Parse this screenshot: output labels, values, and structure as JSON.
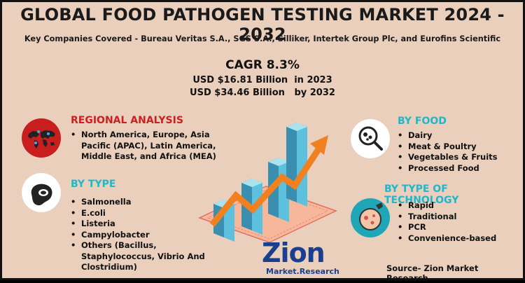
{
  "header": {
    "title": "GLOBAL FOOD PATHOGEN TESTING MARKET 2024 - 2032",
    "subtitle": "Key Companies Covered - Bureau Veritas S.A., SGS S.A., Silliker, Intertek Group Plc, and Eurofins Scientific"
  },
  "stats": {
    "cagr": "CAGR 8.3%",
    "line1": "USD $16.81 Billion  in 2023",
    "line2": "USD $34.46 Billion   by 2032"
  },
  "regional": {
    "title": "REGIONAL ANALYSIS",
    "items": [
      "North America, Europe, Asia Pacific (APAC), Latin America, Middle East, and Africa (MEA)"
    ]
  },
  "by_type": {
    "title": "BY TYPE",
    "items": [
      "Salmonella",
      "E.coli",
      "Listeria",
      "Campylobacter",
      "Others (Bacillus, Staphylococcus, Vibrio And Clostridium)"
    ]
  },
  "by_food": {
    "title": "BY FOOD",
    "items": [
      "Dairy",
      "Meat & Poultry",
      "Vegetables & Fruits",
      "Processed Food"
    ]
  },
  "by_tech": {
    "title": "BY TYPE OF TECHNOLOGY",
    "items": [
      "Rapid",
      "Traditional",
      "PCR",
      "Convenience-based"
    ]
  },
  "logo": {
    "brand": "Zion",
    "sub": "Market.Research"
  },
  "source": "Source- Zion Market Research",
  "colors": {
    "background": "#e9cfbc",
    "red_heading": "#cc1f1f",
    "cyan_heading": "#1fb7c9",
    "globe_circle": "#c81e1e",
    "food_circle": "#ffffff",
    "tech_circle": "#1fa7b8",
    "arrow": "#f08020"
  },
  "icons": [
    "globe-map-icon",
    "steak-icon",
    "magnifier-food-icon",
    "petri-dish-icon",
    "rising-arrow-icon"
  ]
}
